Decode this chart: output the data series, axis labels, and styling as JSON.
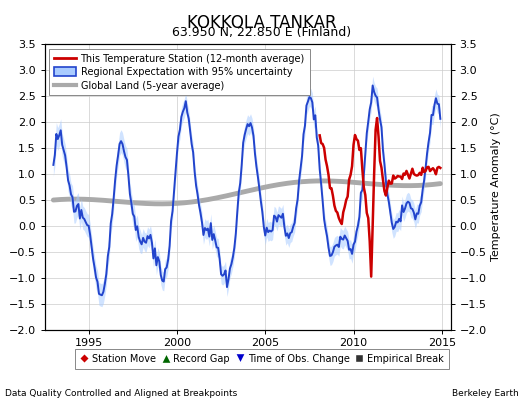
{
  "title": "KOKKOLA TANKAR",
  "subtitle": "63.950 N, 22.850 E (Finland)",
  "ylabel": "Temperature Anomaly (°C)",
  "xlabel_left": "Data Quality Controlled and Aligned at Breakpoints",
  "xlabel_right": "Berkeley Earth",
  "ylim": [
    -2.0,
    3.5
  ],
  "xlim": [
    1992.5,
    2015.5
  ],
  "xticks": [
    1995,
    2000,
    2005,
    2010,
    2015
  ],
  "yticks_left": [
    -2.0,
    -1.5,
    -1.0,
    -0.5,
    0.0,
    0.5,
    1.0,
    1.5,
    2.0,
    2.5,
    3.0,
    3.5
  ],
  "yticks_right": [
    -2.0,
    -1.5,
    -1.0,
    -0.5,
    0.0,
    0.5,
    1.0,
    1.5,
    2.0,
    2.5,
    3.0,
    3.5
  ],
  "legend_entries": [
    {
      "label": "This Temperature Station (12-month average)",
      "color": "#dd0000",
      "lw": 2.0
    },
    {
      "label": "Regional Expectation with 95% uncertainty",
      "color": "#3344cc",
      "lw": 1.5
    },
    {
      "label": "Global Land (5-year average)",
      "color": "#aaaaaa",
      "lw": 3.0
    }
  ],
  "bottom_legend": [
    {
      "label": "Station Move",
      "marker": "D",
      "color": "#cc0000"
    },
    {
      "label": "Record Gap",
      "marker": "^",
      "color": "#006600"
    },
    {
      "label": "Time of Obs. Change",
      "marker": "v",
      "color": "#0000cc"
    },
    {
      "label": "Empirical Break",
      "marker": "s",
      "color": "#333333"
    }
  ],
  "bg_color": "#ffffff",
  "grid_color": "#cccccc",
  "title_fontsize": 12,
  "subtitle_fontsize": 9,
  "tick_fontsize": 8,
  "ylabel_fontsize": 8
}
